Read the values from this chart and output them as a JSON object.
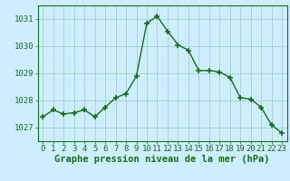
{
  "x": [
    0,
    1,
    2,
    3,
    4,
    5,
    6,
    7,
    8,
    9,
    10,
    11,
    12,
    13,
    14,
    15,
    16,
    17,
    18,
    19,
    20,
    21,
    22,
    23
  ],
  "y": [
    1027.4,
    1027.65,
    1027.5,
    1027.55,
    1027.65,
    1027.4,
    1027.75,
    1028.1,
    1028.25,
    1028.9,
    1030.85,
    1031.1,
    1030.55,
    1030.05,
    1029.85,
    1029.1,
    1029.1,
    1029.05,
    1028.85,
    1028.1,
    1028.05,
    1027.75,
    1027.1,
    1026.8
  ],
  "ylim": [
    1026.5,
    1031.5
  ],
  "yticks": [
    1027,
    1028,
    1029,
    1030,
    1031
  ],
  "xticks": [
    0,
    1,
    2,
    3,
    4,
    5,
    6,
    7,
    8,
    9,
    10,
    11,
    12,
    13,
    14,
    15,
    16,
    17,
    18,
    19,
    20,
    21,
    22,
    23
  ],
  "line_color": "#1a6b1a",
  "marker": "+",
  "marker_size": 5,
  "marker_lw": 1.2,
  "bg_color": "#cceeff",
  "grid_color": "#99ccbb",
  "xlabel": "Graphe pression niveau de la mer (hPa)",
  "xlabel_fontsize": 7.5,
  "xlabel_color": "#1a6b1a",
  "tick_fontsize": 6.5,
  "tick_color": "#1a6b1a",
  "line_width": 1.0,
  "xlim": [
    -0.5,
    23.5
  ]
}
